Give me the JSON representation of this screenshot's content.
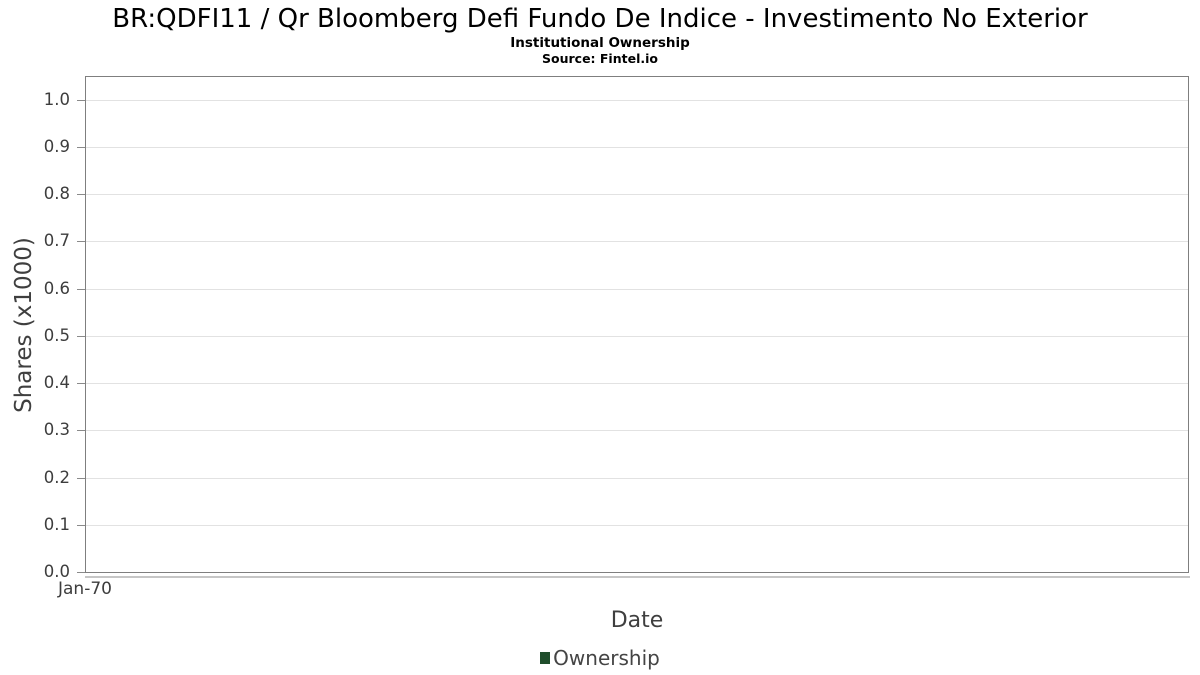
{
  "chart_data": {
    "type": "line",
    "title": "BR:QDFI11 / Qr Bloomberg Defi Fundo De Indice - Investimento No Exterior",
    "subtitle": "Institutional Ownership",
    "source": "Source: Fintel.io",
    "xlabel": "Date",
    "ylabel": "Shares (x1000)",
    "x_ticks": [
      "Jan-70"
    ],
    "y_ticks": [
      0.0,
      0.1,
      0.2,
      0.3,
      0.4,
      0.5,
      0.6,
      0.7,
      0.8,
      0.9,
      1.0
    ],
    "ylim": [
      0,
      1.05
    ],
    "grid": true,
    "series": [
      {
        "name": "Ownership",
        "color": "#1f4d2b",
        "x": [],
        "values": []
      }
    ],
    "legend": {
      "position": "bottom-center",
      "entries": [
        {
          "label": "Ownership",
          "marker_color": "#1f4d2b"
        }
      ]
    }
  },
  "colors": {
    "background": "#ffffff",
    "plot_border": "#7f7f7f",
    "gridline": "#e2e2e2",
    "axis_line": "#c6c6c6",
    "tick_text": "#3d3d3d",
    "label_text": "#3f3f3f",
    "title_text": "#000000",
    "legend_marker": "#1f4d2b"
  }
}
